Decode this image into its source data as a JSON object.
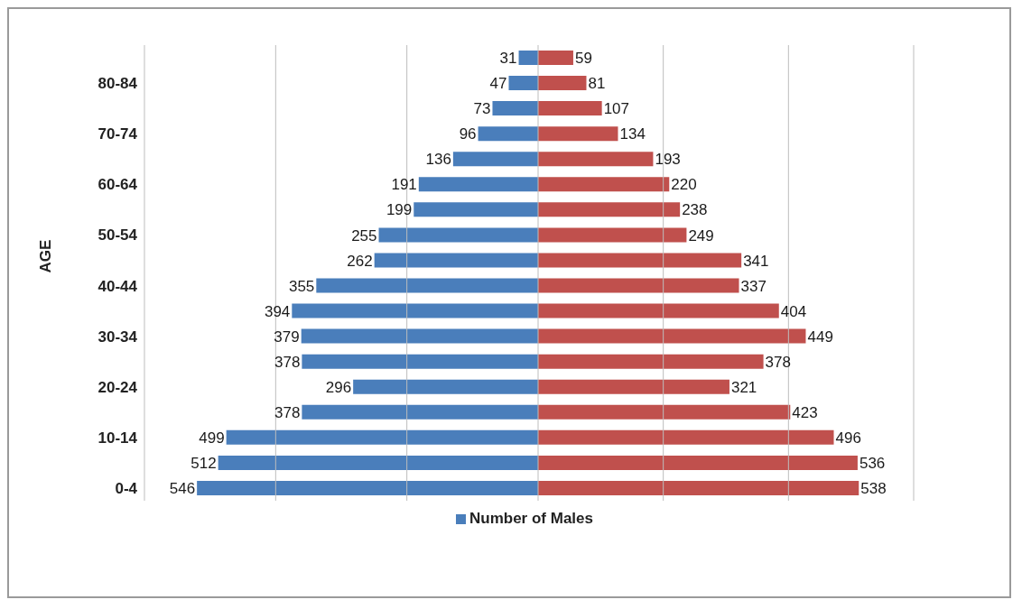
{
  "chart_data": [
    {
      "type": "bar",
      "orientation": "horizontal",
      "ylabel": "AGE",
      "categories": [
        null,
        "80-84",
        null,
        "70-74",
        null,
        "60-64",
        null,
        "50-54",
        null,
        "40-44",
        null,
        "30-34",
        null,
        "20-24",
        null,
        "10-14",
        null,
        "0-4"
      ],
      "series": [
        {
          "name": "Number of Males",
          "color": "#4a7ebb",
          "values": [
            31,
            47,
            73,
            96,
            136,
            191,
            199,
            255,
            262,
            355,
            394,
            379,
            378,
            296,
            378,
            499,
            512,
            546
          ]
        }
      ],
      "xlim": [
        630,
        0
      ],
      "xticks": [
        {
          "value": 630,
          "label": null
        },
        {
          "value": 420,
          "label": null
        },
        {
          "value": 210,
          "label": null
        },
        {
          "value": 0,
          "label": null
        }
      ],
      "data_labels": true,
      "grid": "x",
      "legend": "bottom",
      "tick_labels": "y"
    },
    {
      "type": "bar",
      "orientation": "horizontal",
      "categories": [
        null,
        null,
        null,
        null,
        null,
        null,
        null,
        null,
        null,
        null,
        null,
        null,
        null,
        null,
        null,
        null,
        null,
        null
      ],
      "series": [
        {
          "color": "#c0504d",
          "values": [
            59,
            81,
            107,
            134,
            193,
            220,
            238,
            249,
            341,
            337,
            404,
            449,
            378,
            321,
            423,
            496,
            536,
            538
          ]
        }
      ],
      "xlim": [
        0,
        630
      ],
      "xticks": [
        {
          "value": 0,
          "label": null
        },
        {
          "value": 210,
          "label": null
        },
        {
          "value": 420,
          "label": null
        },
        {
          "value": 630,
          "label": null
        }
      ],
      "data_labels": true,
      "grid": "x",
      "tick_labels": false
    }
  ]
}
